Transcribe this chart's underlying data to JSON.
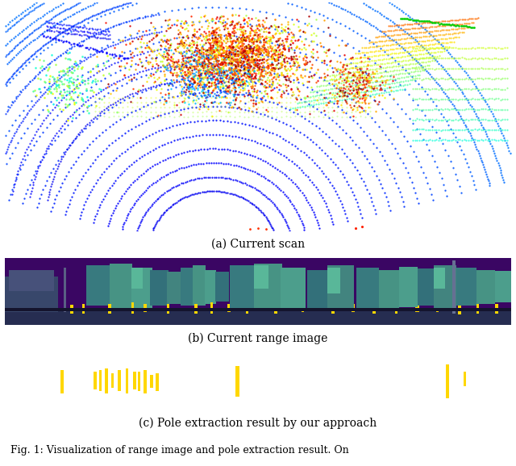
{
  "fig_width": 6.4,
  "fig_height": 5.78,
  "dpi": 100,
  "background_color": "#ffffff",
  "panel_a_label": "(a) Current scan",
  "panel_b_label": "(b) Current range image",
  "panel_c_label": "(c) Pole extraction result by our approach",
  "caption": "Fig. 1: Visualization of range image and pole extraction result. On",
  "range_image_bg": "#3b0764",
  "pole_image_bg": "#3b0764",
  "yellow_color": "#ffd700",
  "label_fontsize": 10,
  "caption_fontsize": 9
}
